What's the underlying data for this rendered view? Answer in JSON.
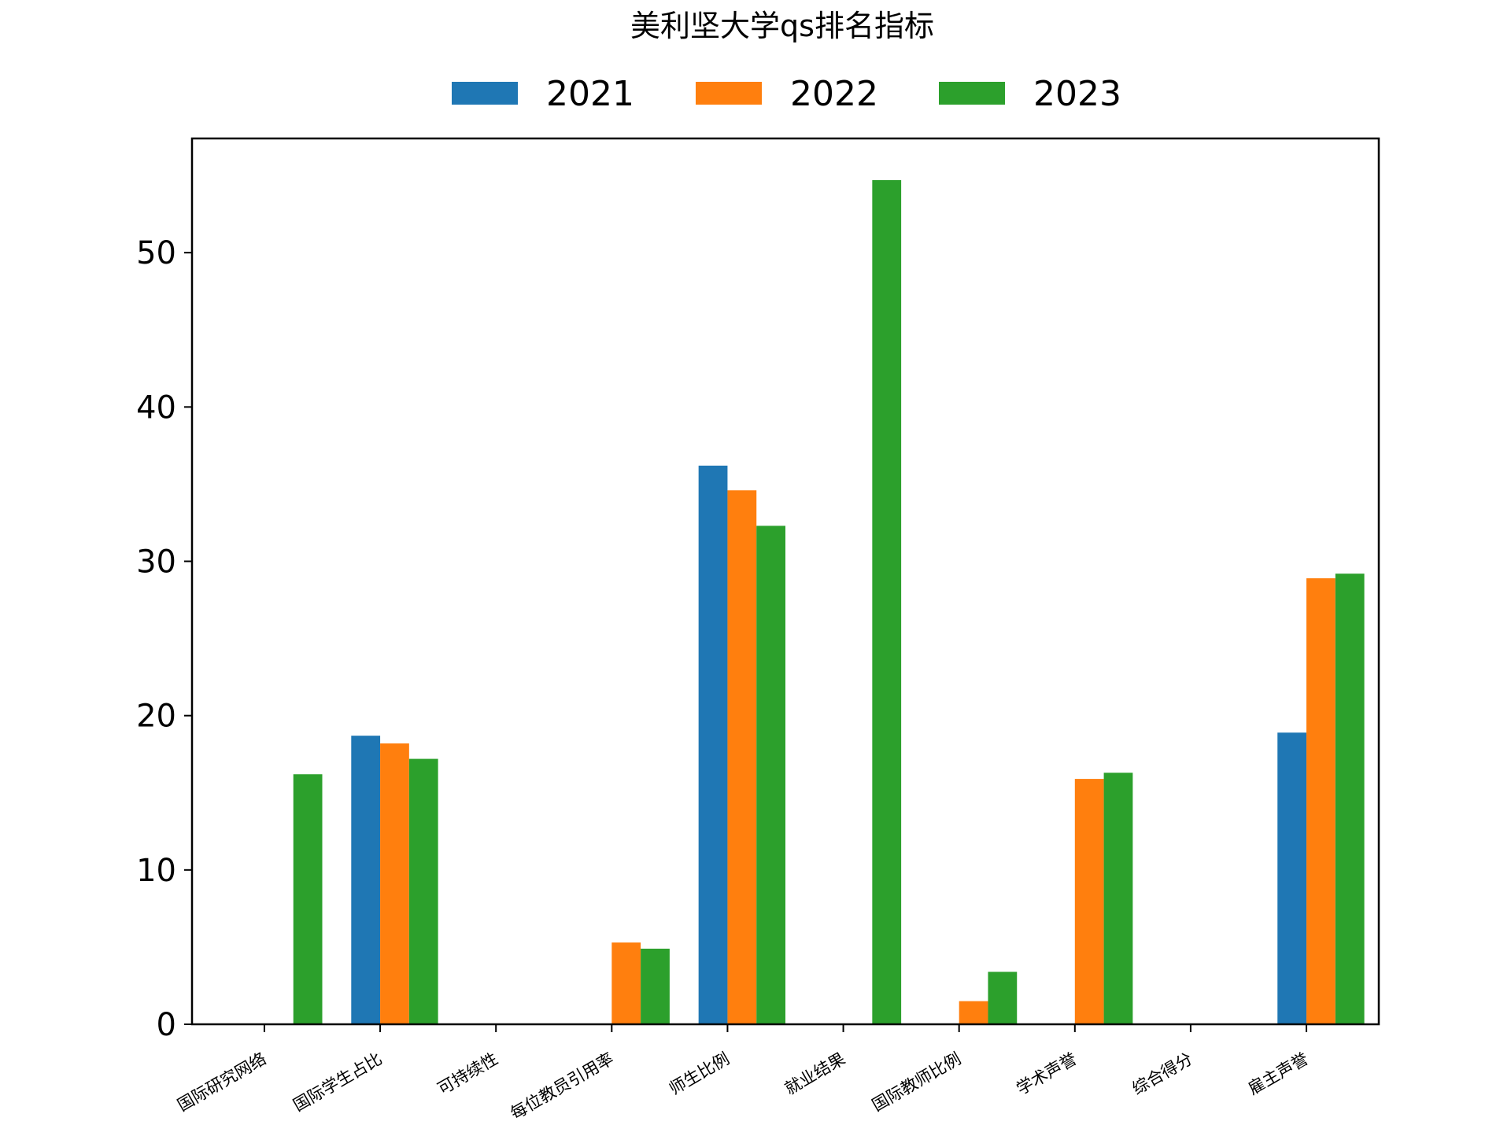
{
  "chart_data": {
    "type": "bar",
    "title": "美利坚大学qs排名指标",
    "xlabel": "",
    "ylabel": "",
    "categories": [
      "国际研究网络",
      "国际学生占比",
      "可持续性",
      "每位教员引用率",
      "师生比例",
      "就业结果",
      "国际教师比例",
      "学术声誉",
      "综合得分",
      "雇主声誉"
    ],
    "series": [
      {
        "name": "2021",
        "color": "#1f77b4",
        "values": [
          0,
          18.7,
          0,
          0,
          36.2,
          0,
          0,
          0,
          0,
          18.9
        ]
      },
      {
        "name": "2022",
        "color": "#ff7f0e",
        "values": [
          0,
          18.2,
          0,
          5.3,
          34.6,
          0,
          1.5,
          15.9,
          0,
          28.9
        ]
      },
      {
        "name": "2023",
        "color": "#2ca02c",
        "values": [
          16.2,
          17.2,
          0,
          4.9,
          32.3,
          54.7,
          3.4,
          16.3,
          0,
          29.2
        ]
      }
    ],
    "ylim": [
      0,
      57.4
    ],
    "yticks": [
      0,
      10,
      20,
      30,
      40,
      50
    ],
    "grid": false,
    "legend_position": "top-center"
  }
}
